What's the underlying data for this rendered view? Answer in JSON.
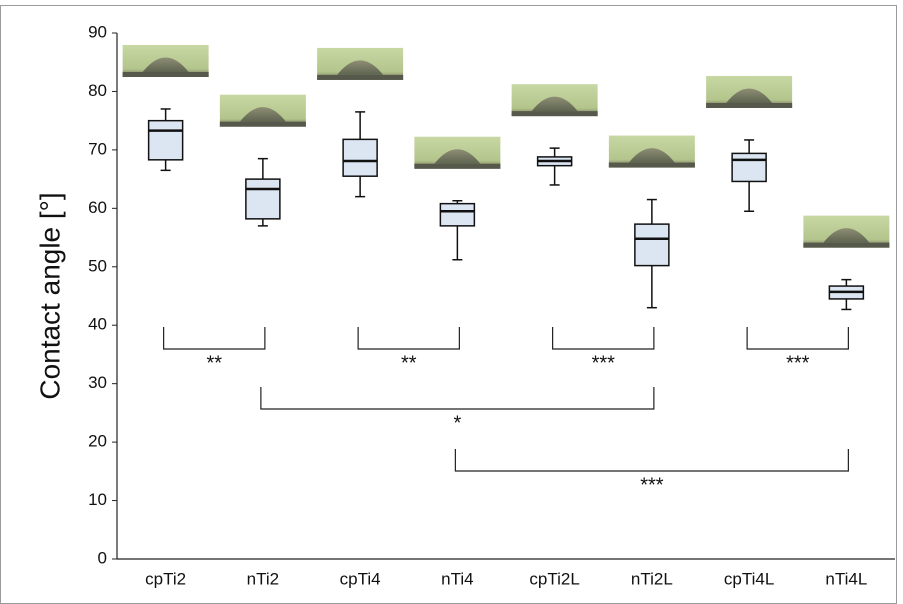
{
  "chart_data": {
    "type": "box",
    "ylabel": "Contact angle [°]",
    "categories": [
      "cpTi2",
      "nTi2",
      "cpTi4",
      "nTi4",
      "cpTi2L",
      "nTi2L",
      "cpTi4L",
      "nTi4L"
    ],
    "boxes": [
      {
        "min": 66.5,
        "q1": 68.3,
        "median": 73.3,
        "q3": 75,
        "max": 77
      },
      {
        "min": 57,
        "q1": 58.2,
        "median": 63.3,
        "q3": 65,
        "max": 68.5
      },
      {
        "min": 62,
        "q1": 65.5,
        "median": 68.1,
        "q3": 71.8,
        "max": 76.5
      },
      {
        "min": 51.2,
        "q1": 57,
        "median": 59.5,
        "q3": 60.8,
        "max": 61.3
      },
      {
        "min": 64,
        "q1": 67.3,
        "median": 68.1,
        "q3": 68.8,
        "max": 70.3
      },
      {
        "min": 43,
        "q1": 50.2,
        "median": 54.8,
        "q3": 57.3,
        "max": 61.5
      },
      {
        "min": 59.5,
        "q1": 64.6,
        "median": 68.3,
        "q3": 69.4,
        "max": 71.7
      },
      {
        "min": 42.7,
        "q1": 44.5,
        "median": 45.7,
        "q3": 46.7,
        "max": 47.8
      }
    ],
    "color": "#dce6f2",
    "ylim": [
      0,
      90
    ],
    "yticks": [
      0,
      10,
      20,
      30,
      40,
      50,
      60,
      70,
      80,
      90
    ],
    "significance": [
      {
        "from": 0,
        "to": 1,
        "label": "**"
      },
      {
        "from": 2,
        "to": 3,
        "label": "**"
      },
      {
        "from": 4,
        "to": 5,
        "label": "***"
      },
      {
        "from": 6,
        "to": 7,
        "label": "***"
      },
      {
        "from": 1,
        "to": 5,
        "label": "*"
      },
      {
        "from": 3,
        "to": 7,
        "label": "***"
      }
    ]
  }
}
